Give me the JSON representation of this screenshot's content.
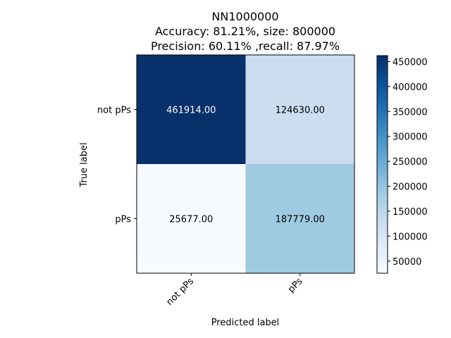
{
  "chart_data": {
    "type": "heatmap",
    "title_lines": [
      "NN1000000",
      "Accuracy: 81.21%, size: 800000",
      "Precision: 60.11% ,recall: 87.97%"
    ],
    "xlabel": "Predicted label",
    "ylabel": "True label",
    "x_categories": [
      "not pPs",
      "pPs"
    ],
    "y_categories": [
      "not pPs",
      "pPs"
    ],
    "matrix": [
      [
        461914,
        124630
      ],
      [
        25677,
        187779
      ]
    ],
    "cell_labels": [
      [
        "461914.00",
        "124630.00"
      ],
      [
        "25677.00",
        "187779.00"
      ]
    ],
    "colormap": "Blues",
    "colorbar": {
      "range": [
        25677,
        461914
      ],
      "ticks": [
        50000,
        100000,
        150000,
        200000,
        250000,
        300000,
        350000,
        400000,
        450000
      ]
    },
    "colors": {
      "max": "#08306b",
      "min": "#f7fbff"
    }
  }
}
